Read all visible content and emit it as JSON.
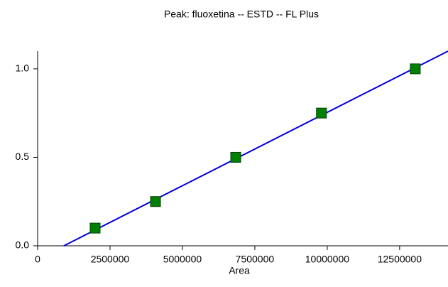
{
  "chart_data": {
    "type": "scatter",
    "title": "Peak: fluoxetina -- ESTD -- FL Plus",
    "x_label": "Area",
    "x": [
      1985000,
      4070000,
      6840000,
      9800000,
      13040000
    ],
    "values": [
      0.1,
      0.25,
      0.5,
      0.75,
      1.0
    ],
    "color": "#008000",
    "fit_line": {
      "x": [
        907000,
        14170000
      ],
      "values": [
        0,
        1.1
      ],
      "color": "#0000e0"
    },
    "xlim": [
      0,
      14170000
    ],
    "xticks": [
      0,
      2500000,
      5000000,
      7500000,
      10000000,
      12500000
    ],
    "ylim": [
      0,
      1.1
    ],
    "yticks": [
      {
        "value": 0,
        "label": "0.0"
      },
      0.5,
      {
        "value": 1,
        "label": "1.0"
      }
    ],
    "grid": false
  }
}
